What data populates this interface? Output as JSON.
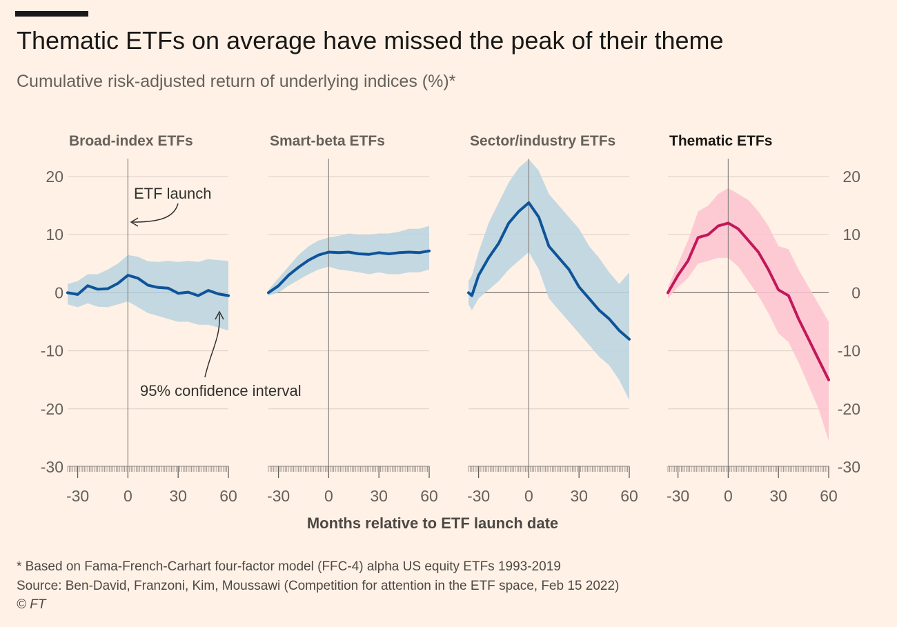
{
  "header": {
    "title": "Thematic ETFs on average have missed the peak of their theme",
    "subtitle": "Cumulative risk-adjusted return of underlying indices (%)*"
  },
  "footer": {
    "note": "* Based on Fama-French-Carhart four-factor model (FFC-4) alpha US equity ETFs 1993-2019",
    "source": "Source: Ben-David, Franzoni, Kim, Moussawi (Competition for attention in the ETF space, Feb 15 2022)",
    "credit": "© FT"
  },
  "colors": {
    "background": "#FFF1E5",
    "blue_line": "#0F5499",
    "blue_band": "#B8D3E1",
    "pink_line": "#C2185B",
    "pink_band": "#FDC3D0",
    "axis": "#66605C",
    "grid": "#D9CEC6"
  },
  "chart_data": {
    "type": "line",
    "xlabel": "Months relative to ETF launch date",
    "ylabel": "",
    "ylim": [
      -30,
      20
    ],
    "yticks": [
      20,
      10,
      0,
      -10,
      -20,
      -30
    ],
    "xlim": [
      -36,
      60
    ],
    "xticks": [
      -30,
      0,
      30,
      60
    ],
    "grid": true,
    "annotations": {
      "launch": "ETF launch",
      "ci": "95% confidence interval"
    },
    "panels": [
      {
        "title": "Broad-index ETFs",
        "color": "blue",
        "x": [
          -36,
          -30,
          -24,
          -18,
          -12,
          -6,
          0,
          6,
          12,
          18,
          24,
          30,
          36,
          42,
          48,
          54,
          60
        ],
        "values": [
          0,
          -0.3,
          1.2,
          0.6,
          0.7,
          1.6,
          3.0,
          2.5,
          1.3,
          0.9,
          0.8,
          -0.1,
          0.1,
          -0.5,
          0.4,
          -0.2,
          -0.5
        ],
        "lower": [
          -2,
          -2.5,
          -1.8,
          -2.4,
          -2.5,
          -2,
          -1.5,
          -2.5,
          -3.5,
          -4,
          -4.5,
          -5,
          -5,
          -5.5,
          -5.5,
          -6,
          -6.5
        ],
        "upper": [
          1.5,
          2,
          3.2,
          3.2,
          4,
          5,
          6.5,
          6.2,
          5.4,
          5.3,
          5.5,
          5.3,
          5.5,
          5.3,
          5.8,
          5.6,
          5.5
        ]
      },
      {
        "title": "Smart-beta ETFs",
        "color": "blue",
        "x": [
          -36,
          -30,
          -24,
          -18,
          -12,
          -6,
          0,
          6,
          12,
          18,
          24,
          30,
          36,
          42,
          48,
          54,
          60
        ],
        "values": [
          0,
          1.2,
          3.0,
          4.4,
          5.6,
          6.5,
          7.0,
          6.9,
          7.0,
          6.7,
          6.6,
          6.9,
          6.7,
          6.9,
          7.0,
          6.9,
          7.2
        ],
        "lower": [
          -0.5,
          0,
          1.2,
          2.2,
          3.2,
          4,
          4.5,
          4,
          3.8,
          3.5,
          3.2,
          3.5,
          3.2,
          3.2,
          3.5,
          3.5,
          4
        ],
        "upper": [
          0.5,
          2.5,
          4.5,
          6.5,
          8,
          9,
          9.5,
          9.8,
          10.2,
          10,
          10,
          10.2,
          10.2,
          10.5,
          11,
          11,
          11.5
        ]
      },
      {
        "title": "Sector/industry ETFs",
        "color": "blue",
        "x": [
          -36,
          -34,
          -30,
          -24,
          -18,
          -12,
          -6,
          0,
          6,
          12,
          18,
          24,
          30,
          36,
          42,
          48,
          54,
          60
        ],
        "values": [
          0,
          -0.5,
          3.0,
          6.0,
          8.5,
          12.0,
          14.0,
          15.5,
          13.0,
          8.0,
          6.0,
          4.0,
          1.0,
          -1.0,
          -3.0,
          -4.5,
          -6.5,
          -8.0
        ],
        "lower": [
          -2,
          -3,
          -1,
          0.5,
          2,
          4,
          5.5,
          7,
          4,
          -1,
          -3,
          -5,
          -7,
          -9,
          -11,
          -12.5,
          -15,
          -18.5
        ],
        "upper": [
          2,
          3,
          7,
          12,
          15.5,
          19,
          21.5,
          23,
          21,
          17,
          15,
          13,
          11,
          8,
          6,
          3.5,
          1.5,
          3.5
        ]
      },
      {
        "title": "Thematic ETFs",
        "color": "pink",
        "x": [
          -36,
          -30,
          -24,
          -18,
          -12,
          -6,
          0,
          6,
          12,
          18,
          24,
          30,
          36,
          42,
          48,
          54,
          60
        ],
        "values": [
          0,
          3.0,
          5.5,
          9.5,
          10.0,
          11.5,
          12.0,
          11.0,
          9.0,
          7.0,
          4.0,
          0.5,
          -0.5,
          -4.5,
          -8.0,
          -11.5,
          -15.0
        ],
        "lower": [
          -1,
          1,
          2.5,
          5,
          5.5,
          6,
          6,
          4.5,
          2,
          -0.5,
          -3.5,
          -7,
          -8.5,
          -12,
          -16,
          -20,
          -25.5
        ],
        "upper": [
          1,
          5,
          9,
          14,
          15,
          17,
          18,
          17,
          16,
          14,
          11.5,
          8,
          7.5,
          4,
          1,
          -2,
          -5
        ]
      }
    ]
  }
}
